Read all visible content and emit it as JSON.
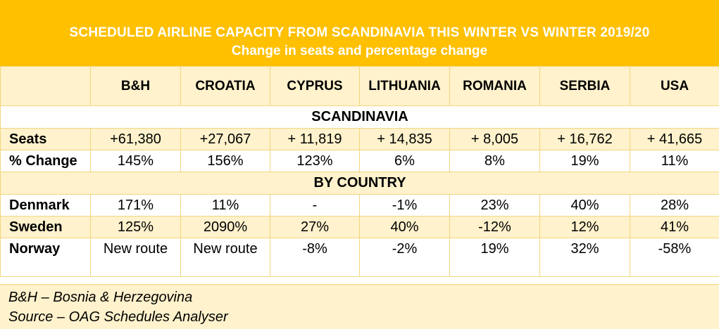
{
  "chart_data": {
    "type": "table",
    "title": "SCHEDULED AIRLINE CAPACITY FROM SCANDINAVIA THIS WINTER VS WINTER 2019/20",
    "subtitle": "Change in seats and percentage change",
    "columns": [
      "B&H",
      "CROATIA",
      "CYPRUS",
      "LITHUANIA",
      "ROMANIA",
      "SERBIA",
      "USA"
    ],
    "sections": [
      {
        "name": "SCANDINAVIA",
        "rows": [
          {
            "label": "Seats",
            "values": [
              "+61,380",
              "+27,067",
              "+ 11,819",
              "+ 14,835",
              "+ 8,005",
              "+ 16,762",
              "+ 41,665"
            ]
          },
          {
            "label": "% Change",
            "values": [
              "145%",
              "156%",
              "123%",
              "6%",
              "8%",
              "19%",
              "11%"
            ]
          }
        ]
      },
      {
        "name": "BY COUNTRY",
        "rows": [
          {
            "label": "Denmark",
            "values": [
              "171%",
              "11%",
              "-",
              "-1%",
              "23%",
              "40%",
              "28%"
            ]
          },
          {
            "label": "Sweden",
            "values": [
              "125%",
              "2090%",
              "27%",
              "40%",
              "-12%",
              "12%",
              "41%"
            ]
          },
          {
            "label": "Norway",
            "values": [
              "New route",
              "New route",
              "-8%",
              "-2%",
              "19%",
              "32%",
              "-58%"
            ]
          }
        ]
      }
    ],
    "footnotes": [
      "B&H – Bosnia & Herzegovina",
      "Source – OAG Schedules Analyser"
    ]
  },
  "colors": {
    "title_band": "#FFC000",
    "title_text": "#FFFFFF",
    "row_tint": "#FFF2CC",
    "border": "#F3D67E"
  }
}
